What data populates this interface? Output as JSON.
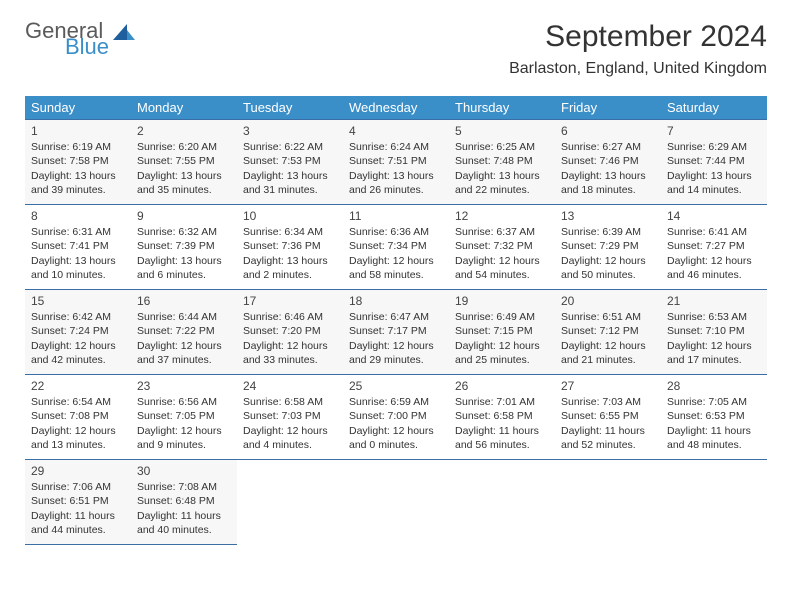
{
  "logo": {
    "word1": "General",
    "word2": "Blue"
  },
  "title": "September 2024",
  "location": "Barlaston, England, United Kingdom",
  "colors": {
    "header_bg": "#3b8fc9",
    "header_fg": "#ffffff",
    "cell_border": "#3b6ea5",
    "logo_gray": "#5a5a5a",
    "logo_blue": "#3b8fc9"
  },
  "day_headers": [
    "Sunday",
    "Monday",
    "Tuesday",
    "Wednesday",
    "Thursday",
    "Friday",
    "Saturday"
  ],
  "weeks": [
    [
      {
        "n": "1",
        "sr": "Sunrise: 6:19 AM",
        "ss": "Sunset: 7:58 PM",
        "dl": "Daylight: 13 hours and 39 minutes."
      },
      {
        "n": "2",
        "sr": "Sunrise: 6:20 AM",
        "ss": "Sunset: 7:55 PM",
        "dl": "Daylight: 13 hours and 35 minutes."
      },
      {
        "n": "3",
        "sr": "Sunrise: 6:22 AM",
        "ss": "Sunset: 7:53 PM",
        "dl": "Daylight: 13 hours and 31 minutes."
      },
      {
        "n": "4",
        "sr": "Sunrise: 6:24 AM",
        "ss": "Sunset: 7:51 PM",
        "dl": "Daylight: 13 hours and 26 minutes."
      },
      {
        "n": "5",
        "sr": "Sunrise: 6:25 AM",
        "ss": "Sunset: 7:48 PM",
        "dl": "Daylight: 13 hours and 22 minutes."
      },
      {
        "n": "6",
        "sr": "Sunrise: 6:27 AM",
        "ss": "Sunset: 7:46 PM",
        "dl": "Daylight: 13 hours and 18 minutes."
      },
      {
        "n": "7",
        "sr": "Sunrise: 6:29 AM",
        "ss": "Sunset: 7:44 PM",
        "dl": "Daylight: 13 hours and 14 minutes."
      }
    ],
    [
      {
        "n": "8",
        "sr": "Sunrise: 6:31 AM",
        "ss": "Sunset: 7:41 PM",
        "dl": "Daylight: 13 hours and 10 minutes."
      },
      {
        "n": "9",
        "sr": "Sunrise: 6:32 AM",
        "ss": "Sunset: 7:39 PM",
        "dl": "Daylight: 13 hours and 6 minutes."
      },
      {
        "n": "10",
        "sr": "Sunrise: 6:34 AM",
        "ss": "Sunset: 7:36 PM",
        "dl": "Daylight: 13 hours and 2 minutes."
      },
      {
        "n": "11",
        "sr": "Sunrise: 6:36 AM",
        "ss": "Sunset: 7:34 PM",
        "dl": "Daylight: 12 hours and 58 minutes."
      },
      {
        "n": "12",
        "sr": "Sunrise: 6:37 AM",
        "ss": "Sunset: 7:32 PM",
        "dl": "Daylight: 12 hours and 54 minutes."
      },
      {
        "n": "13",
        "sr": "Sunrise: 6:39 AM",
        "ss": "Sunset: 7:29 PM",
        "dl": "Daylight: 12 hours and 50 minutes."
      },
      {
        "n": "14",
        "sr": "Sunrise: 6:41 AM",
        "ss": "Sunset: 7:27 PM",
        "dl": "Daylight: 12 hours and 46 minutes."
      }
    ],
    [
      {
        "n": "15",
        "sr": "Sunrise: 6:42 AM",
        "ss": "Sunset: 7:24 PM",
        "dl": "Daylight: 12 hours and 42 minutes."
      },
      {
        "n": "16",
        "sr": "Sunrise: 6:44 AM",
        "ss": "Sunset: 7:22 PM",
        "dl": "Daylight: 12 hours and 37 minutes."
      },
      {
        "n": "17",
        "sr": "Sunrise: 6:46 AM",
        "ss": "Sunset: 7:20 PM",
        "dl": "Daylight: 12 hours and 33 minutes."
      },
      {
        "n": "18",
        "sr": "Sunrise: 6:47 AM",
        "ss": "Sunset: 7:17 PM",
        "dl": "Daylight: 12 hours and 29 minutes."
      },
      {
        "n": "19",
        "sr": "Sunrise: 6:49 AM",
        "ss": "Sunset: 7:15 PM",
        "dl": "Daylight: 12 hours and 25 minutes."
      },
      {
        "n": "20",
        "sr": "Sunrise: 6:51 AM",
        "ss": "Sunset: 7:12 PM",
        "dl": "Daylight: 12 hours and 21 minutes."
      },
      {
        "n": "21",
        "sr": "Sunrise: 6:53 AM",
        "ss": "Sunset: 7:10 PM",
        "dl": "Daylight: 12 hours and 17 minutes."
      }
    ],
    [
      {
        "n": "22",
        "sr": "Sunrise: 6:54 AM",
        "ss": "Sunset: 7:08 PM",
        "dl": "Daylight: 12 hours and 13 minutes."
      },
      {
        "n": "23",
        "sr": "Sunrise: 6:56 AM",
        "ss": "Sunset: 7:05 PM",
        "dl": "Daylight: 12 hours and 9 minutes."
      },
      {
        "n": "24",
        "sr": "Sunrise: 6:58 AM",
        "ss": "Sunset: 7:03 PM",
        "dl": "Daylight: 12 hours and 4 minutes."
      },
      {
        "n": "25",
        "sr": "Sunrise: 6:59 AM",
        "ss": "Sunset: 7:00 PM",
        "dl": "Daylight: 12 hours and 0 minutes."
      },
      {
        "n": "26",
        "sr": "Sunrise: 7:01 AM",
        "ss": "Sunset: 6:58 PM",
        "dl": "Daylight: 11 hours and 56 minutes."
      },
      {
        "n": "27",
        "sr": "Sunrise: 7:03 AM",
        "ss": "Sunset: 6:55 PM",
        "dl": "Daylight: 11 hours and 52 minutes."
      },
      {
        "n": "28",
        "sr": "Sunrise: 7:05 AM",
        "ss": "Sunset: 6:53 PM",
        "dl": "Daylight: 11 hours and 48 minutes."
      }
    ],
    [
      {
        "n": "29",
        "sr": "Sunrise: 7:06 AM",
        "ss": "Sunset: 6:51 PM",
        "dl": "Daylight: 11 hours and 44 minutes."
      },
      {
        "n": "30",
        "sr": "Sunrise: 7:08 AM",
        "ss": "Sunset: 6:48 PM",
        "dl": "Daylight: 11 hours and 40 minutes."
      },
      null,
      null,
      null,
      null,
      null
    ]
  ]
}
